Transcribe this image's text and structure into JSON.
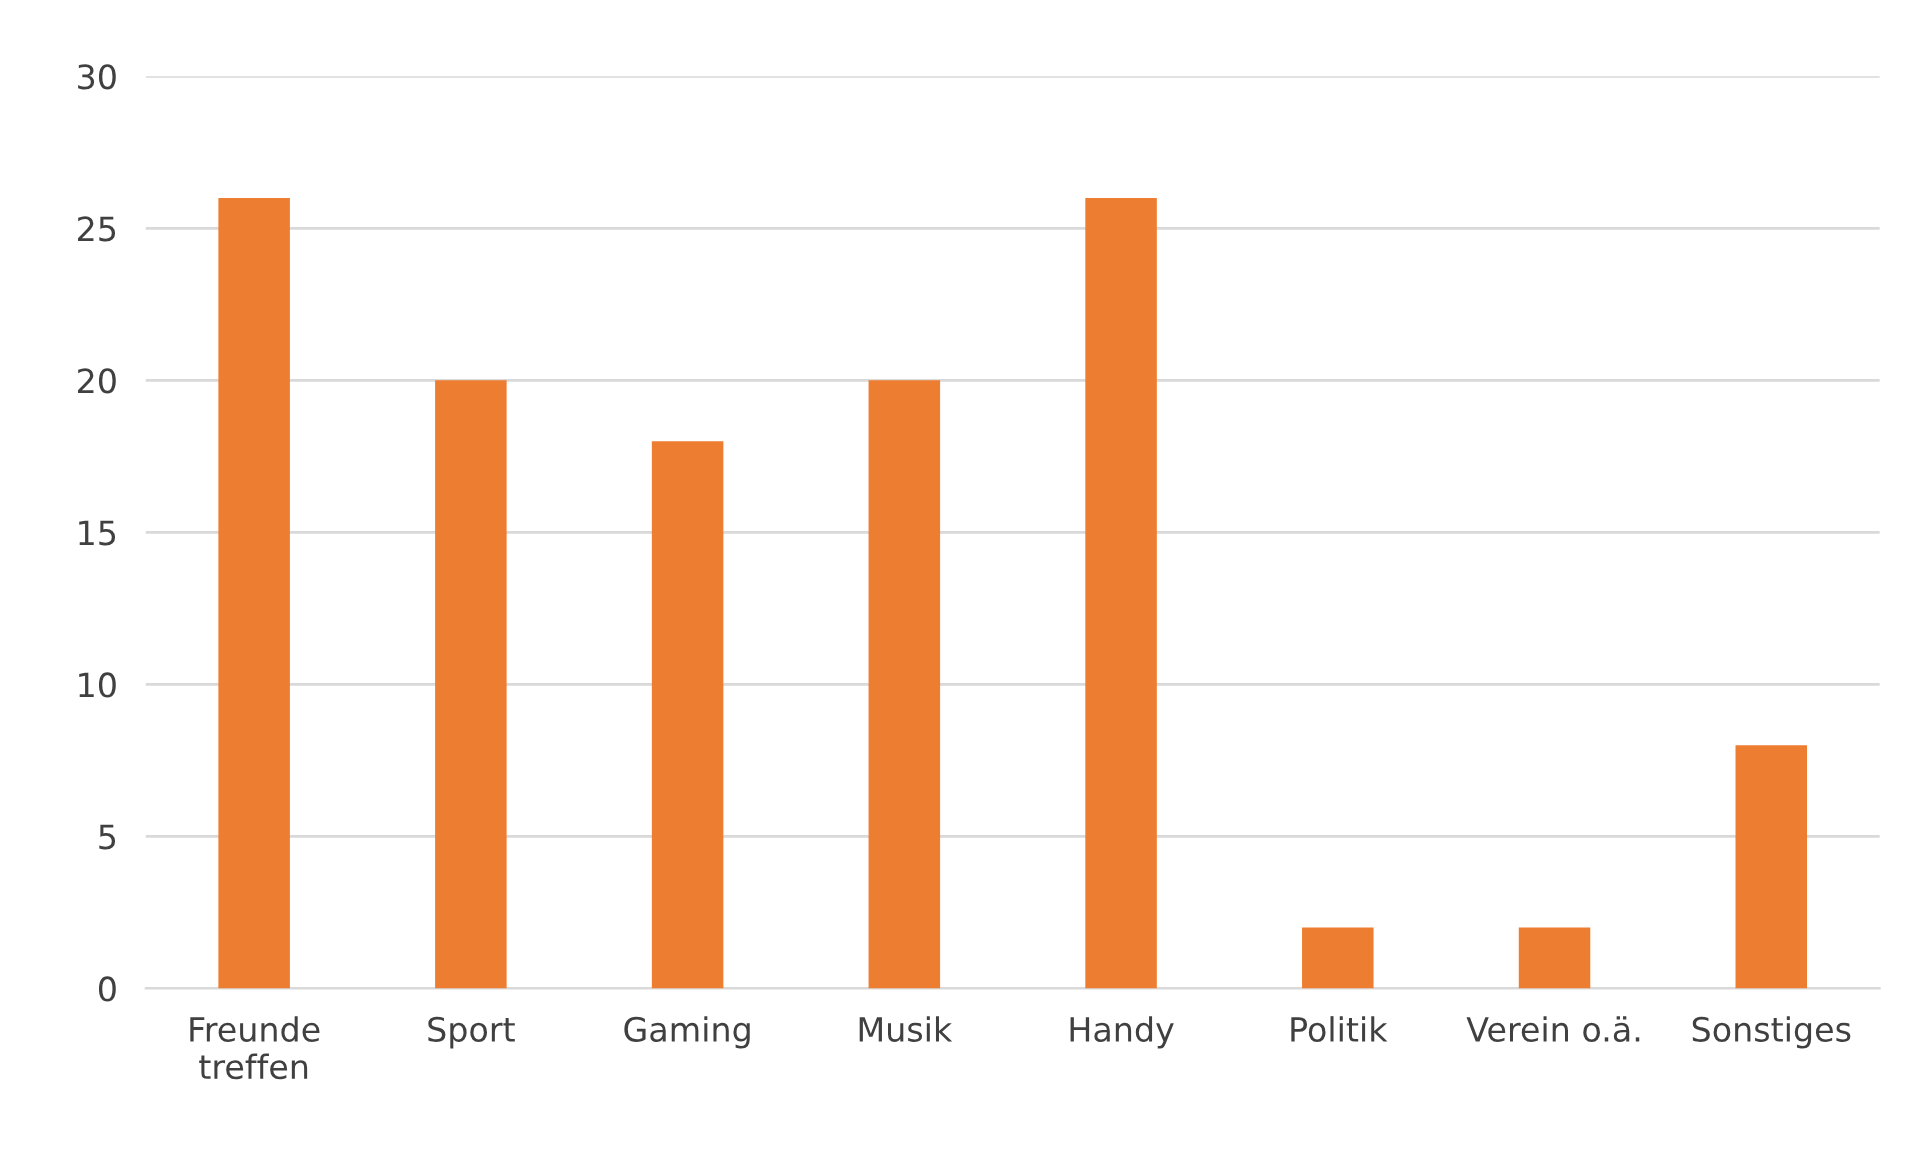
{
  "chart_data": {
    "type": "bar",
    "categories": [
      "Freunde\ntreffen",
      "Sport",
      "Gaming",
      "Musik",
      "Handy",
      "Politik",
      "Verein o.ä.",
      "Sonstiges"
    ],
    "values": [
      26,
      20,
      18,
      20,
      26,
      2,
      2,
      8
    ],
    "color": "#ed7d31",
    "ylim": [
      0,
      30
    ],
    "yticks": [
      0,
      5,
      10,
      15,
      20,
      25,
      30
    ],
    "grid": "y",
    "legend": false
  }
}
